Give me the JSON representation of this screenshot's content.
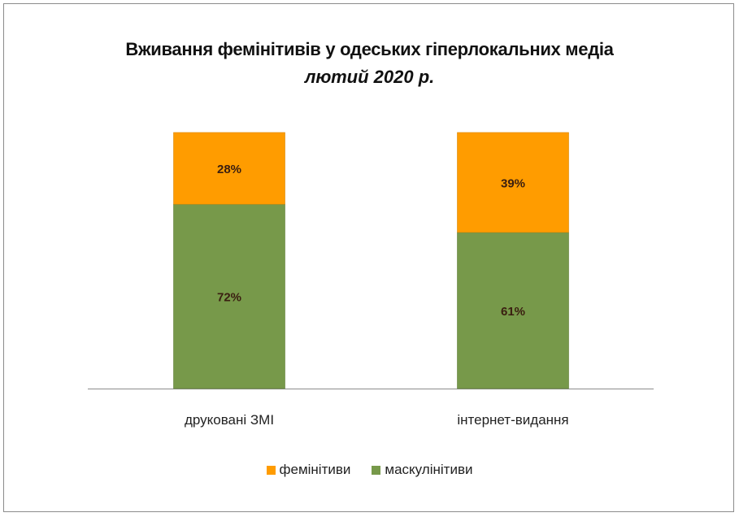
{
  "chart_data": {
    "type": "bar",
    "stacked": true,
    "title": "Вживання фемінітивів у одеських гіперлокальних медіа",
    "subtitle": "лютий 2020 р.",
    "categories": [
      "друковані ЗМІ",
      "інтернет-видання"
    ],
    "series": [
      {
        "name": "маскулінітиви",
        "values": [
          72,
          61
        ],
        "labels": [
          "72%",
          "61%"
        ],
        "color": "#77994a"
      },
      {
        "name": "фемінітиви",
        "values": [
          28,
          39
        ],
        "labels": [
          "28%",
          "39%"
        ],
        "color": "#ff9c00"
      }
    ],
    "ylim": [
      0,
      100
    ],
    "grid": false,
    "legend": "bottom",
    "legend_order": [
      "фемінітиви",
      "маскулінітиви"
    ]
  }
}
